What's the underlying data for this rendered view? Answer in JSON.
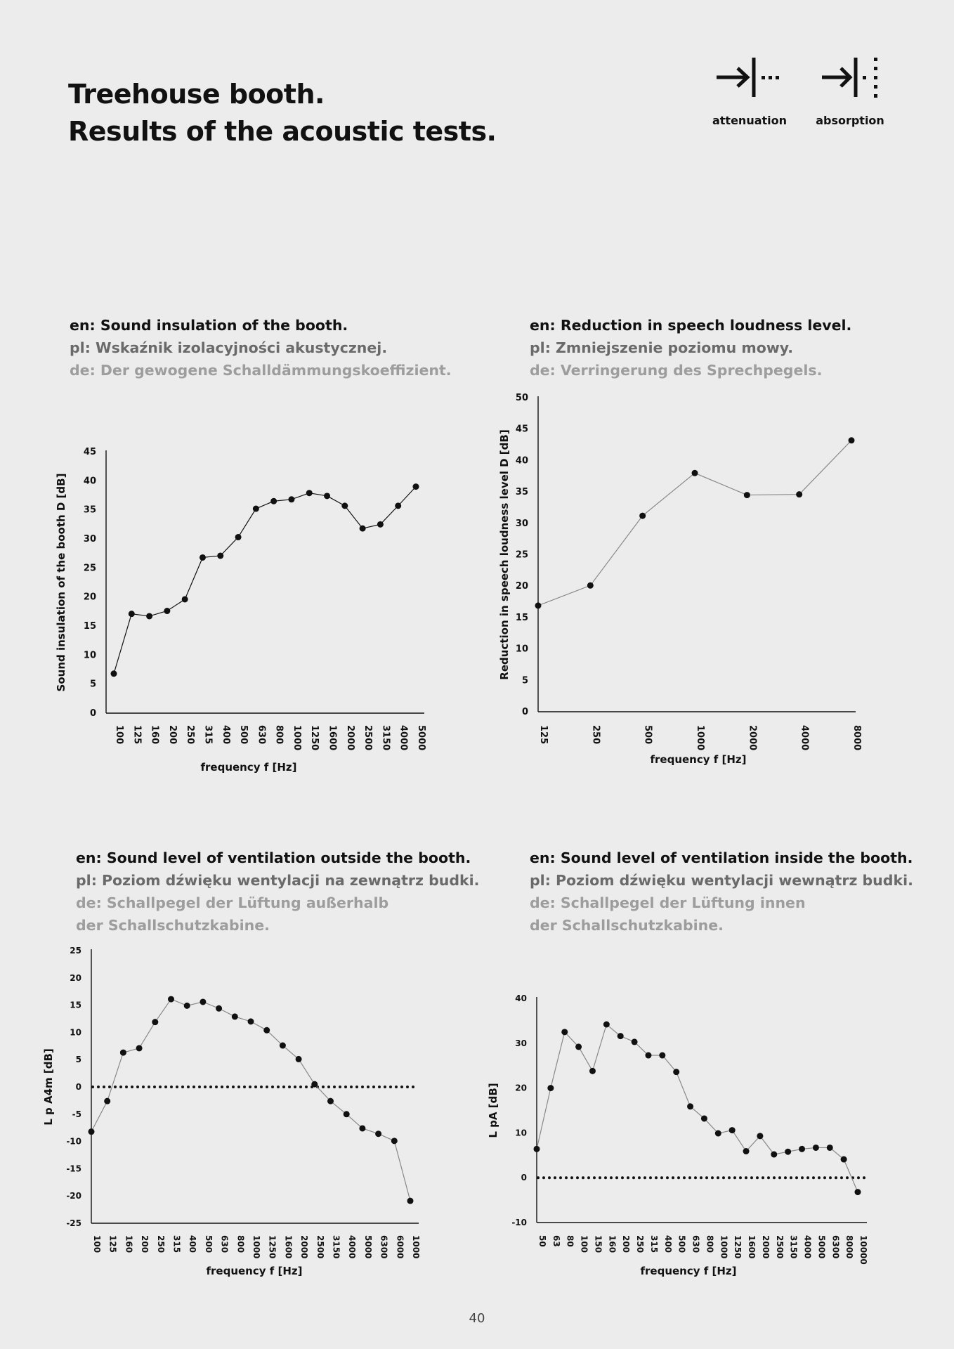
{
  "header": {
    "title_line1": "Treehouse booth.",
    "title_line2": "Results of the acoustic tests."
  },
  "legend": {
    "attenuation_label": "attenuation",
    "absorption_label": "absorption",
    "attenuation_icon": "arrow-to-wall-dots-icon",
    "absorption_icon": "arrow-to-wall-vertical-dots-icon"
  },
  "captions": {
    "chart1": {
      "en": "en: Sound insulation of the booth.",
      "pl": "pl: Wskaźnik izolacyjności akustycznej.",
      "de": "de: Der gewogene Schalldämmungskoeffizient."
    },
    "chart2": {
      "en": "en: Reduction in speech loudness level.",
      "pl": "pl: Zmniejszenie poziomu mowy.",
      "de": "de: Verringerung des Sprechpegels."
    },
    "chart3": {
      "en": "en: Sound level of ventilation outside the booth.",
      "pl": "pl: Poziom dźwięku wentylacji na zewnątrz budki.",
      "de1": "de: Schallpegel der Lüftung außerhalb",
      "de2": "der Schallschutzkabine."
    },
    "chart4": {
      "en": "en: Sound level of ventilation inside the booth.",
      "pl": "pl: Poziom dźwięku wentylacji wewnątrz budki.",
      "de1": "de: Schallpegel der Lüftung innen",
      "de2": "der Schallschutzkabine."
    }
  },
  "chart_data": [
    {
      "type": "line",
      "xlabel": "frequency f [Hz]",
      "ylabel": "Sound insulation of the booth  D [dB]",
      "ylim": [
        0,
        45
      ],
      "yticks": [
        0,
        5,
        10,
        15,
        20,
        25,
        30,
        35,
        40,
        45
      ],
      "categories": [
        "100",
        "125",
        "160",
        "200",
        "250",
        "315",
        "400",
        "500",
        "630",
        "800",
        "1000",
        "1250",
        "1600",
        "2000",
        "2500",
        "3150",
        "4000",
        "5000"
      ],
      "values": [
        6.8,
        17.1,
        16.7,
        17.6,
        19.6,
        26.8,
        27.1,
        30.3,
        35.2,
        36.5,
        36.8,
        37.9,
        37.4,
        35.7,
        31.8,
        32.5,
        35.7,
        39.0
      ],
      "line_color": "#111111"
    },
    {
      "type": "line",
      "xlabel": "frequency f [Hz]",
      "ylabel": "Reduction in speech loudness level D [dB]",
      "ylim": [
        0,
        50
      ],
      "yticks": [
        0,
        5,
        10,
        15,
        20,
        25,
        30,
        35,
        40,
        45,
        50
      ],
      "categories": [
        "125",
        "250",
        "500",
        "1000",
        "2000",
        "4000",
        "8000"
      ],
      "values": [
        16.9,
        20.1,
        31.2,
        38.0,
        34.5,
        34.6,
        43.2
      ],
      "line_color": "#888888"
    },
    {
      "type": "line",
      "xlabel": "frequency f [Hz]",
      "ylabel": "L p A4m [dB]",
      "ylim": [
        -25,
        25
      ],
      "yticks": [
        -25,
        -20,
        -15,
        -10,
        -5,
        0,
        5,
        10,
        15,
        20,
        25
      ],
      "categories": [
        "100",
        "125",
        "160",
        "200",
        "250",
        "315",
        "400",
        "500",
        "630",
        "800",
        "1000",
        "1250",
        "1600",
        "2000",
        "2500",
        "3150",
        "4000",
        "5000",
        "6300",
        "6000",
        "1000"
      ],
      "values": [
        -8.2,
        -2.6,
        6.3,
        7.1,
        11.9,
        16.1,
        14.9,
        15.6,
        14.4,
        12.9,
        12.0,
        10.4,
        7.6,
        5.1,
        0.5,
        -2.6,
        -5.0,
        -7.6,
        -8.6,
        -9.9,
        -20.9
      ],
      "reference_line": 0,
      "line_color": "#888888"
    },
    {
      "type": "line",
      "xlabel": "frequency f [Hz]",
      "ylabel": "L pA [dB]",
      "ylim": [
        -10,
        40
      ],
      "yticks": [
        -10,
        0,
        10,
        20,
        30,
        40
      ],
      "categories": [
        "50",
        "63",
        "80",
        "100",
        "150",
        "160",
        "200",
        "250",
        "315",
        "400",
        "500",
        "630",
        "800",
        "1000",
        "1250",
        "1600",
        "2000",
        "2500",
        "3150",
        "4000",
        "5000",
        "6300",
        "8000",
        "10000"
      ],
      "values": [
        6.4,
        20.0,
        32.5,
        29.2,
        23.8,
        34.2,
        31.6,
        30.3,
        27.3,
        27.3,
        23.6,
        15.9,
        13.2,
        9.9,
        10.6,
        5.9,
        9.3,
        5.2,
        5.8,
        6.4,
        6.7,
        6.7,
        4.1,
        -3.2
      ],
      "reference_line": 0,
      "line_color": "#888888"
    }
  ],
  "footer": {
    "page_number": "40"
  }
}
